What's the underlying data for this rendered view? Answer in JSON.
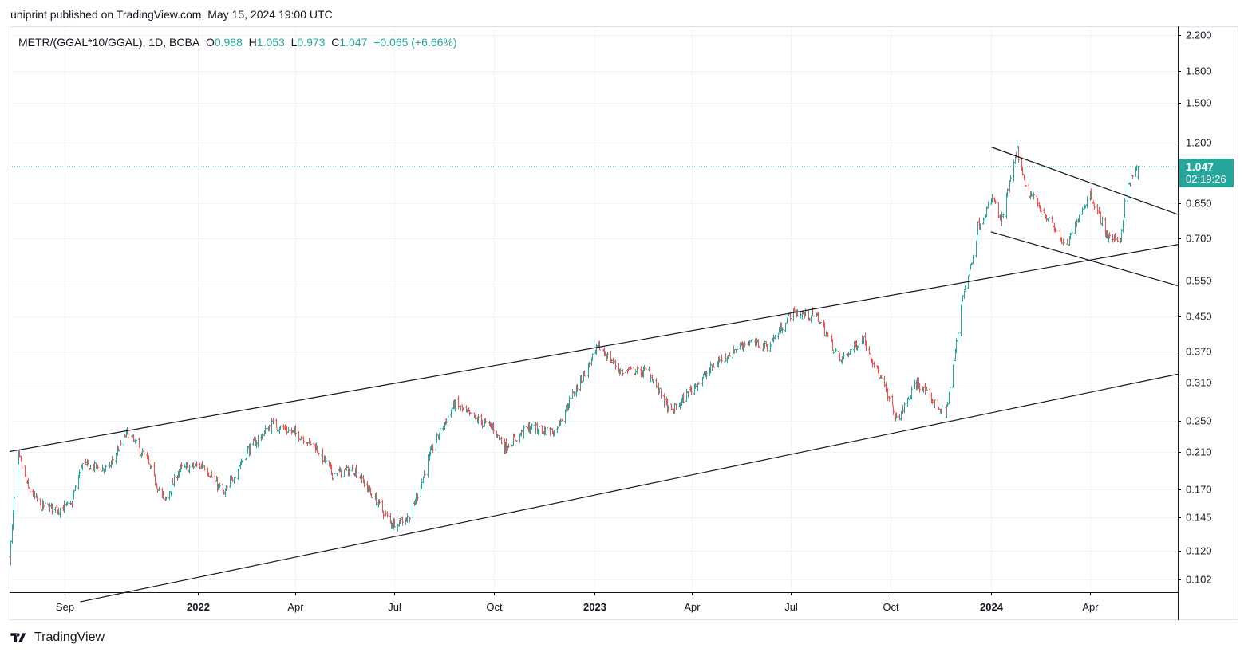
{
  "header": {
    "published_by": "uniprint published on TradingView.com, May 15, 2024 19:00 UTC"
  },
  "legend": {
    "symbol": "METR/(GGAL*10/GGAL), 1D, BCBA",
    "open_label": "O",
    "open": "0.988",
    "high_label": "H",
    "high": "1.053",
    "low_label": "L",
    "low": "0.973",
    "close_label": "C",
    "close": "1.047",
    "change": "+0.065 (+6.66%)"
  },
  "price_tag": {
    "price": "1.047",
    "countdown": "02:19:26"
  },
  "footer": {
    "brand": "TradingView"
  },
  "colors": {
    "up": "#26a69a",
    "down": "#ef5350",
    "grid": "#f0f3fa",
    "line": "#131722"
  },
  "chart_data": {
    "type": "candlestick",
    "symbol": "METR/(GGAL*10/GGAL)",
    "interval": "1D",
    "exchange": "BCBA",
    "scale": "log",
    "y_ticks": [
      2.2,
      1.8,
      1.5,
      1.2,
      0.85,
      0.7,
      0.55,
      0.45,
      0.37,
      0.31,
      0.25,
      0.21,
      0.17,
      0.145,
      0.12,
      0.102
    ],
    "y_tick_labels": [
      "2.200",
      "1.800",
      "1.500",
      "1.200",
      "0.850",
      "0.700",
      "0.550",
      "0.450",
      "0.370",
      "0.310",
      "0.250",
      "0.210",
      "0.170",
      "0.145",
      "0.120",
      "0.102"
    ],
    "ylim": [
      0.095,
      2.3
    ],
    "x_range": [
      "2021-07-12",
      "2024-06-21"
    ],
    "x_ticks": [
      {
        "date": "2021-09-01",
        "label": "Sep",
        "bold": false
      },
      {
        "date": "2022-01-01",
        "label": "2022",
        "bold": true
      },
      {
        "date": "2022-04-01",
        "label": "Apr",
        "bold": false
      },
      {
        "date": "2022-07-01",
        "label": "Jul",
        "bold": false
      },
      {
        "date": "2022-10-01",
        "label": "Oct",
        "bold": false
      },
      {
        "date": "2023-01-01",
        "label": "2023",
        "bold": true
      },
      {
        "date": "2023-04-01",
        "label": "Apr",
        "bold": false
      },
      {
        "date": "2023-07-01",
        "label": "Jul",
        "bold": false
      },
      {
        "date": "2023-10-01",
        "label": "Oct",
        "bold": false
      },
      {
        "date": "2024-01-01",
        "label": "2024",
        "bold": true
      },
      {
        "date": "2024-04-01",
        "label": "Apr",
        "bold": false
      }
    ],
    "path_anchors": [
      [
        "2021-07-12",
        0.115
      ],
      [
        "2021-07-16",
        0.16
      ],
      [
        "2021-07-20",
        0.205
      ],
      [
        "2021-07-29",
        0.17
      ],
      [
        "2021-08-09",
        0.155
      ],
      [
        "2021-08-25",
        0.152
      ],
      [
        "2021-09-06",
        0.155
      ],
      [
        "2021-09-16",
        0.195
      ],
      [
        "2021-10-10",
        0.19
      ],
      [
        "2021-10-28",
        0.235
      ],
      [
        "2021-11-15",
        0.2
      ],
      [
        "2021-12-01",
        0.158
      ],
      [
        "2021-12-15",
        0.19
      ],
      [
        "2022-01-06",
        0.195
      ],
      [
        "2022-01-25",
        0.165
      ],
      [
        "2022-02-15",
        0.21
      ],
      [
        "2022-03-10",
        0.245
      ],
      [
        "2022-04-05",
        0.23
      ],
      [
        "2022-04-20",
        0.215
      ],
      [
        "2022-05-05",
        0.185
      ],
      [
        "2022-05-25",
        0.19
      ],
      [
        "2022-06-10",
        0.165
      ],
      [
        "2022-06-28",
        0.14
      ],
      [
        "2022-07-15",
        0.145
      ],
      [
        "2022-08-05",
        0.215
      ],
      [
        "2022-08-25",
        0.275
      ],
      [
        "2022-09-10",
        0.255
      ],
      [
        "2022-09-30",
        0.24
      ],
      [
        "2022-10-10",
        0.215
      ],
      [
        "2022-11-01",
        0.24
      ],
      [
        "2022-11-25",
        0.235
      ],
      [
        "2022-12-15",
        0.3
      ],
      [
        "2023-01-05",
        0.38
      ],
      [
        "2023-01-25",
        0.33
      ],
      [
        "2023-02-20",
        0.33
      ],
      [
        "2023-03-12",
        0.26
      ],
      [
        "2023-04-01",
        0.3
      ],
      [
        "2023-04-25",
        0.35
      ],
      [
        "2023-05-20",
        0.39
      ],
      [
        "2023-06-10",
        0.38
      ],
      [
        "2023-07-01",
        0.46
      ],
      [
        "2023-07-25",
        0.45
      ],
      [
        "2023-08-15",
        0.35
      ],
      [
        "2023-09-05",
        0.4
      ],
      [
        "2023-09-25",
        0.3
      ],
      [
        "2023-10-06",
        0.25
      ],
      [
        "2023-10-25",
        0.31
      ],
      [
        "2023-11-10",
        0.275
      ],
      [
        "2023-11-20",
        0.26
      ],
      [
        "2023-11-28",
        0.35
      ],
      [
        "2023-12-05",
        0.5
      ],
      [
        "2023-12-12",
        0.58
      ],
      [
        "2023-12-20",
        0.75
      ],
      [
        "2024-01-03",
        0.88
      ],
      [
        "2024-01-10",
        0.76
      ],
      [
        "2024-01-25",
        1.15
      ],
      [
        "2024-02-01",
        0.93
      ],
      [
        "2024-02-20",
        0.8
      ],
      [
        "2024-03-10",
        0.66
      ],
      [
        "2024-03-20",
        0.78
      ],
      [
        "2024-04-01",
        0.9
      ],
      [
        "2024-04-18",
        0.7
      ],
      [
        "2024-04-29",
        0.7
      ],
      [
        "2024-05-05",
        0.93
      ],
      [
        "2024-05-15",
        1.047
      ]
    ],
    "trendlines": [
      {
        "name": "channel-upper",
        "from": [
          "2021-07-12",
          0.21
        ],
        "to": [
          "2024-06-21",
          0.675
        ]
      },
      {
        "name": "channel-lower",
        "from": [
          "2021-09-15",
          0.09
        ],
        "to": [
          "2024-06-21",
          0.325
        ]
      },
      {
        "name": "wedge-upper",
        "from": [
          "2024-01-01",
          1.17
        ],
        "to": [
          "2024-06-21",
          0.8
        ]
      },
      {
        "name": "wedge-lower",
        "from": [
          "2024-01-01",
          0.725
        ],
        "to": [
          "2024-06-21",
          0.535
        ]
      }
    ],
    "last_price": 1.047
  }
}
